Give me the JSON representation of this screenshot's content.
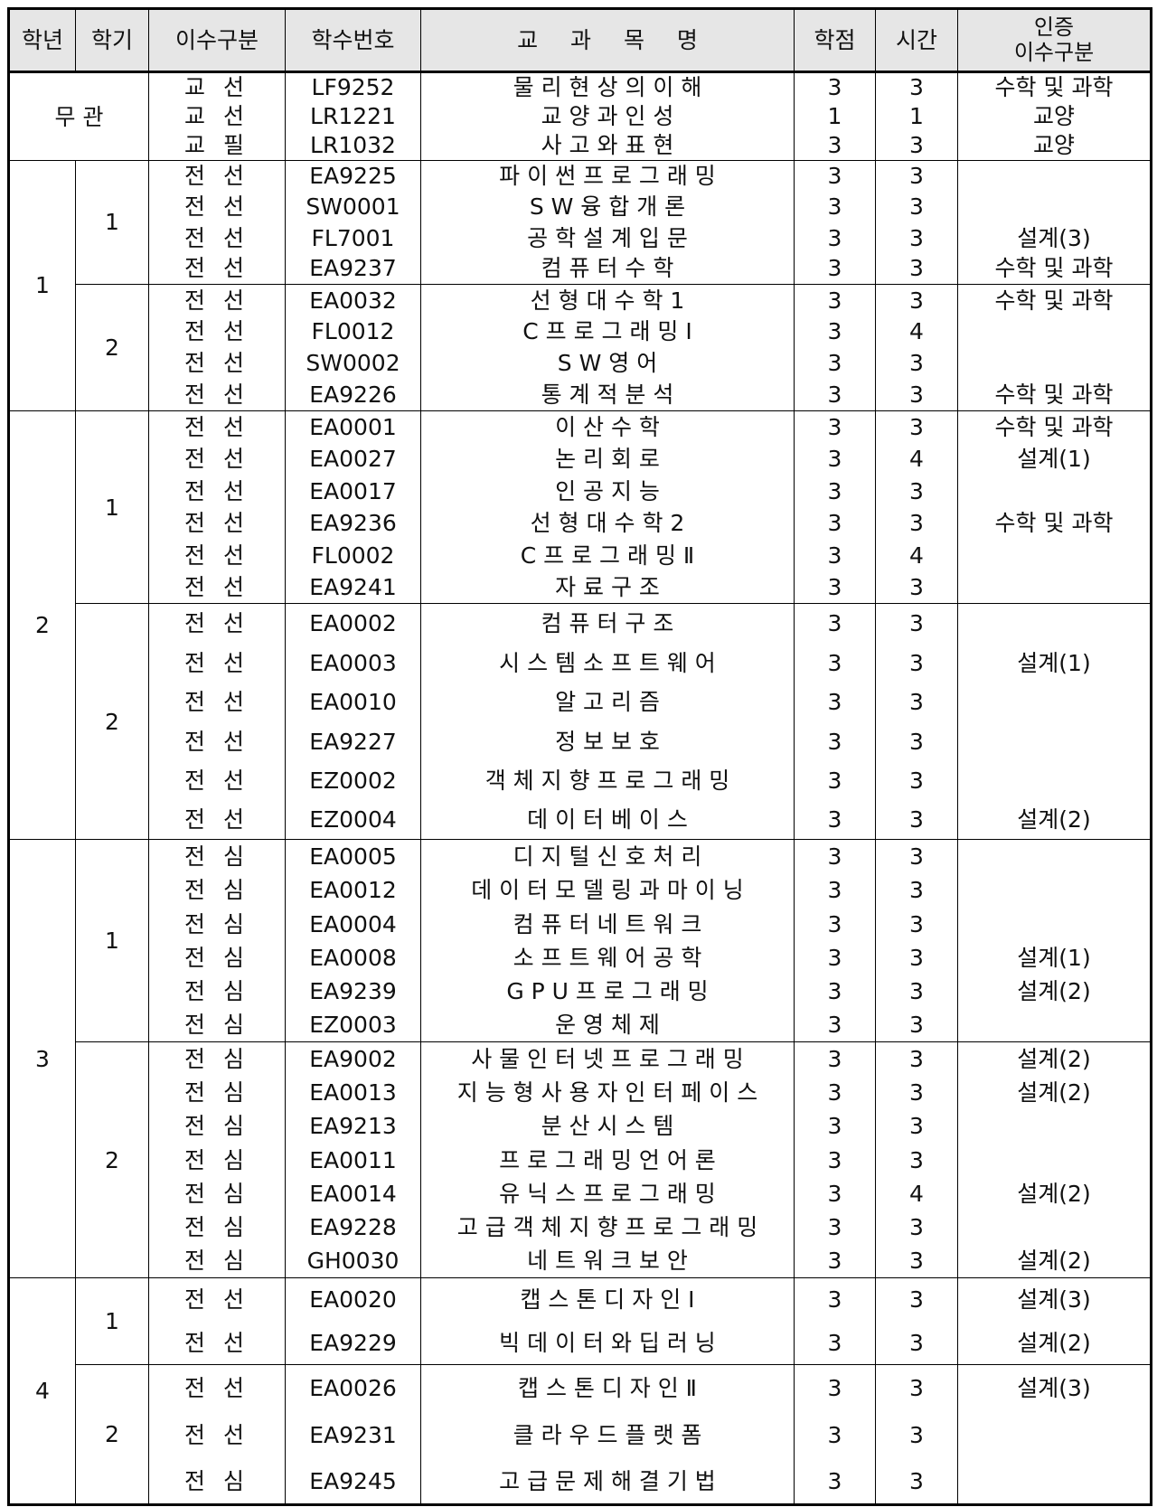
{
  "header": {
    "grade": "학년",
    "semester": "학기",
    "course_type": "이수구분",
    "course_code": "학수번호",
    "course_title": "교 과 목 명",
    "credits": "학점",
    "hours": "시간",
    "cert_line1": "인증",
    "cert_line2": "이수구분"
  },
  "grades": [
    {
      "label": "무 관",
      "semesters": [
        {
          "label": "",
          "courses": [
            {
              "type": "교 선",
              "code": "LF9252",
              "name": "물 리 현 상 의 이 해",
              "credits": "3",
              "hours": "3",
              "cert": "수학 및 과학"
            },
            {
              "type": "교 선",
              "code": "LR1221",
              "name": "교 양 과 인 성",
              "credits": "1",
              "hours": "1",
              "cert": "교양"
            },
            {
              "type": "교 필",
              "code": "LR1032",
              "name": "사 고 와 표 현",
              "credits": "3",
              "hours": "3",
              "cert": "교양"
            }
          ]
        }
      ]
    },
    {
      "label": "1",
      "semesters": [
        {
          "label": "1",
          "courses": [
            {
              "type": "전 선",
              "code": "EA9225",
              "name": "파 이 썬 프 로 그 래 밍",
              "credits": "3",
              "hours": "3",
              "cert": ""
            },
            {
              "type": "전 선",
              "code": "SW0001",
              "name": "S W 융 합 개 론",
              "credits": "3",
              "hours": "3",
              "cert": ""
            },
            {
              "type": "전 선",
              "code": "FL7001",
              "name": "공 학 설 계 입 문",
              "credits": "3",
              "hours": "3",
              "cert": "설계(3)"
            },
            {
              "type": "전 선",
              "code": "EA9237",
              "name": "컴 퓨 터 수 학",
              "credits": "3",
              "hours": "3",
              "cert": "수학 및 과학"
            }
          ]
        },
        {
          "label": "2",
          "courses": [
            {
              "type": "전 선",
              "code": "EA0032",
              "name": "선 형 대 수 학 1",
              "credits": "3",
              "hours": "3",
              "cert": "수학 및 과학"
            },
            {
              "type": "전 선",
              "code": "FL0012",
              "name": "C 프 로 그 래 밍 Ⅰ",
              "credits": "3",
              "hours": "4",
              "cert": ""
            },
            {
              "type": "전 선",
              "code": "SW0002",
              "name": "S W 영 어",
              "credits": "3",
              "hours": "3",
              "cert": ""
            },
            {
              "type": "전 선",
              "code": "EA9226",
              "name": "통 계 적 분 석",
              "credits": "3",
              "hours": "3",
              "cert": "수학 및 과학"
            }
          ]
        }
      ]
    },
    {
      "label": "2",
      "semesters": [
        {
          "label": "1",
          "courses": [
            {
              "type": "전 선",
              "code": "EA0001",
              "name": "이 산 수 학",
              "credits": "3",
              "hours": "3",
              "cert": "수학 및 과학"
            },
            {
              "type": "전 선",
              "code": "EA0027",
              "name": "논 리 회 로",
              "credits": "3",
              "hours": "4",
              "cert": "설계(1)"
            },
            {
              "type": "전 선",
              "code": "EA0017",
              "name": "인 공 지 능",
              "credits": "3",
              "hours": "3",
              "cert": ""
            },
            {
              "type": "전 선",
              "code": "EA9236",
              "name": "선 형 대 수 학 2",
              "credits": "3",
              "hours": "3",
              "cert": "수학 및 과학"
            },
            {
              "type": "전 선",
              "code": "FL0002",
              "name": "C 프 로 그 래 밍 Ⅱ",
              "credits": "3",
              "hours": "4",
              "cert": ""
            },
            {
              "type": "전 선",
              "code": "EA9241",
              "name": "자 료 구 조",
              "credits": "3",
              "hours": "3",
              "cert": ""
            }
          ]
        },
        {
          "label": "2",
          "courses": [
            {
              "type": "전 선",
              "code": "EA0002",
              "name": "컴 퓨 터 구 조",
              "credits": "3",
              "hours": "3",
              "cert": ""
            },
            {
              "type": "전 선",
              "code": "EA0003",
              "name": "시 스 템 소 프 트 웨 어",
              "credits": "3",
              "hours": "3",
              "cert": "설계(1)"
            },
            {
              "type": "전 선",
              "code": "EA0010",
              "name": "알 고 리 즘",
              "credits": "3",
              "hours": "3",
              "cert": ""
            },
            {
              "type": "전 선",
              "code": "EA9227",
              "name": "정 보 보 호",
              "credits": "3",
              "hours": "3",
              "cert": ""
            },
            {
              "type": "전 선",
              "code": "EZ0002",
              "name": "객 체 지 향 프 로 그 래 밍",
              "credits": "3",
              "hours": "3",
              "cert": ""
            },
            {
              "type": "전 선",
              "code": "EZ0004",
              "name": "데 이 터 베 이 스",
              "credits": "3",
              "hours": "3",
              "cert": "설계(2)"
            }
          ]
        }
      ]
    },
    {
      "label": "3",
      "semesters": [
        {
          "label": "1",
          "courses": [
            {
              "type": "전 심",
              "code": "EA0005",
              "name": "디 지 털 신 호 처 리",
              "credits": "3",
              "hours": "3",
              "cert": ""
            },
            {
              "type": "전 심",
              "code": "EA0012",
              "name": "데 이 터 모 델 링 과 마 이 닝",
              "credits": "3",
              "hours": "3",
              "cert": ""
            },
            {
              "type": "전 심",
              "code": "EA0004",
              "name": "컴 퓨 터 네 트 워 크",
              "credits": "3",
              "hours": "3",
              "cert": ""
            },
            {
              "type": "전 심",
              "code": "EA0008",
              "name": "소 프 트 웨 어 공 학",
              "credits": "3",
              "hours": "3",
              "cert": "설계(1)"
            },
            {
              "type": "전 심",
              "code": "EA9239",
              "name": "G P U 프 로 그 래 밍",
              "credits": "3",
              "hours": "3",
              "cert": "설계(2)"
            },
            {
              "type": "전 심",
              "code": "EZ0003",
              "name": "운 영 체 제",
              "credits": "3",
              "hours": "3",
              "cert": ""
            }
          ]
        },
        {
          "label": "2",
          "courses": [
            {
              "type": "전 심",
              "code": "EA9002",
              "name": "사 물 인 터 넷 프 로 그 래 밍",
              "credits": "3",
              "hours": "3",
              "cert": "설계(2)"
            },
            {
              "type": "전 심",
              "code": "EA0013",
              "name": "지 능 형 사 용 자 인 터 페 이 스",
              "credits": "3",
              "hours": "3",
              "cert": "설계(2)"
            },
            {
              "type": "전 심",
              "code": "EA9213",
              "name": "분 산 시 스 템",
              "credits": "3",
              "hours": "3",
              "cert": ""
            },
            {
              "type": "전 심",
              "code": "EA0011",
              "name": "프 로 그 래 밍 언 어 론",
              "credits": "3",
              "hours": "3",
              "cert": ""
            },
            {
              "type": "전 심",
              "code": "EA0014",
              "name": "유 닉 스 프 로 그 래 밍",
              "credits": "3",
              "hours": "4",
              "cert": "설계(2)"
            },
            {
              "type": "전 심",
              "code": "EA9228",
              "name": "고 급 객 체 지 향 프 로 그 래 밍",
              "credits": "3",
              "hours": "3",
              "cert": ""
            },
            {
              "type": "전 심",
              "code": "GH0030",
              "name": "네 트 워 크 보 안",
              "credits": "3",
              "hours": "3",
              "cert": "설계(2)"
            }
          ]
        }
      ]
    },
    {
      "label": "4",
      "semesters": [
        {
          "label": "1",
          "courses": [
            {
              "type": "전 선",
              "code": "EA0020",
              "name": "캡 스 톤 디 자 인 Ⅰ",
              "credits": "3",
              "hours": "3",
              "cert": "설계(3)"
            },
            {
              "type": "전 선",
              "code": "EA9229",
              "name": "빅 데 이 터 와 딥 러 닝",
              "credits": "3",
              "hours": "3",
              "cert": "설계(2)"
            }
          ]
        },
        {
          "label": "2",
          "courses": [
            {
              "type": "전 선",
              "code": "EA0026",
              "name": "캡 스 톤 디 자 인 Ⅱ",
              "credits": "3",
              "hours": "3",
              "cert": "설계(3)"
            },
            {
              "type": "전 선",
              "code": "EA9231",
              "name": "클 라 우 드 플 랫 폼",
              "credits": "3",
              "hours": "3",
              "cert": ""
            },
            {
              "type": "전 심",
              "code": "EA9245",
              "name": "고 급 문 제 해 결 기 법",
              "credits": "3",
              "hours": "3",
              "cert": ""
            }
          ]
        }
      ]
    }
  ]
}
